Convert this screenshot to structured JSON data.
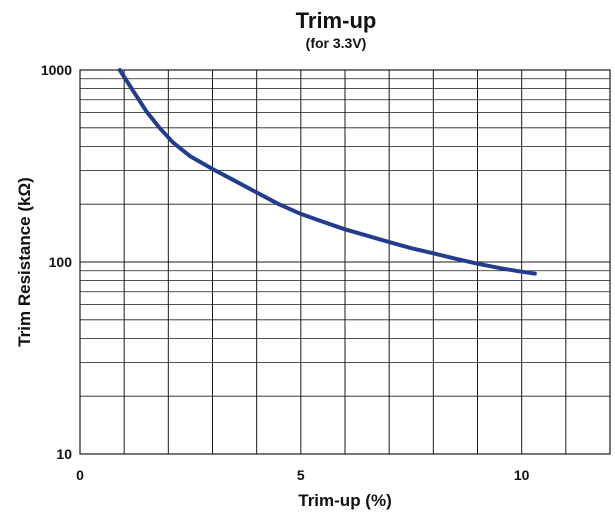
{
  "chart_data": {
    "type": "line",
    "title": "Trim-up",
    "subtitle": "(for 3.3V)",
    "xlabel": "Trim-up (%)",
    "ylabel": "Trim Resistance (kΩ)",
    "xlim": [
      0,
      12
    ],
    "ylim": [
      10,
      1000
    ],
    "y_scale": "log",
    "grid": true,
    "x_ticks": [
      {
        "value": 0,
        "label": "0"
      },
      {
        "value": 5,
        "label": "5"
      },
      {
        "value": 10,
        "label": "10"
      }
    ],
    "y_ticks": [
      {
        "value": 1000,
        "label": "1000"
      },
      {
        "value": 100,
        "label": "100"
      },
      {
        "value": 10,
        "label": "10"
      }
    ],
    "series": [
      {
        "color": "#233d8c",
        "x": [
          0.9,
          1.2,
          1.5,
          1.8,
          2.1,
          2.5,
          3.0,
          3.5,
          4.0,
          4.5,
          5.0,
          5.5,
          6.0,
          6.5,
          7.0,
          7.5,
          8.0,
          8.5,
          9.0,
          9.5,
          10.0,
          10.3
        ],
        "y": [
          1000,
          780,
          610,
          500,
          420,
          355,
          305,
          265,
          230,
          200,
          178,
          162,
          148,
          137,
          127,
          118,
          111,
          104,
          98,
          93,
          89,
          87
        ]
      }
    ]
  }
}
